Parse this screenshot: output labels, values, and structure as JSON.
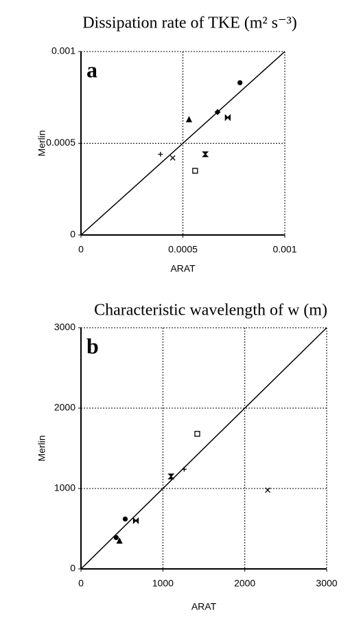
{
  "chart_data": [
    {
      "type": "scatter",
      "title": "Dissipation rate of TKE (m² s⁻³)",
      "label": "a",
      "x_label": "ARAT",
      "y_label": "Merlin",
      "x": [
        0.00039,
        0.00045,
        0.00053,
        0.00056,
        0.00061,
        0.00067,
        0.00072,
        0.00078
      ],
      "y": [
        0.00044,
        0.00042,
        0.00063,
        0.00035,
        0.00044,
        0.00067,
        0.00064,
        0.00083
      ],
      "markers": [
        "plus",
        "x",
        "triangle",
        "square",
        "hourglass",
        "diamond",
        "bowtie",
        "circle"
      ],
      "color": "#000000",
      "xlim": [
        0,
        0.001
      ],
      "ylim": [
        0,
        0.001
      ],
      "xticks": [
        0,
        0.0005,
        0.001
      ],
      "yticks": [
        0,
        0.0005,
        0.001
      ],
      "grid": true,
      "identity_line": true
    },
    {
      "type": "scatter",
      "title": "Characteristic wavelength of w (m)",
      "label": "b",
      "x_label": "ARAT",
      "y_label": "Merlin",
      "x": [
        430,
        470,
        540,
        670,
        1100,
        1260,
        1420,
        2280
      ],
      "y": [
        390,
        350,
        620,
        600,
        1150,
        1240,
        1680,
        980
      ],
      "markers": [
        "circle",
        "triangle",
        "circle",
        "bowtie",
        "hourglass",
        "plus",
        "square",
        "x"
      ],
      "color": "#000000",
      "xlim": [
        0,
        3000
      ],
      "ylim": [
        0,
        3000
      ],
      "xticks": [
        0,
        1000,
        2000,
        3000
      ],
      "yticks": [
        0,
        1000,
        2000,
        3000
      ],
      "grid": true,
      "identity_line": true
    }
  ]
}
